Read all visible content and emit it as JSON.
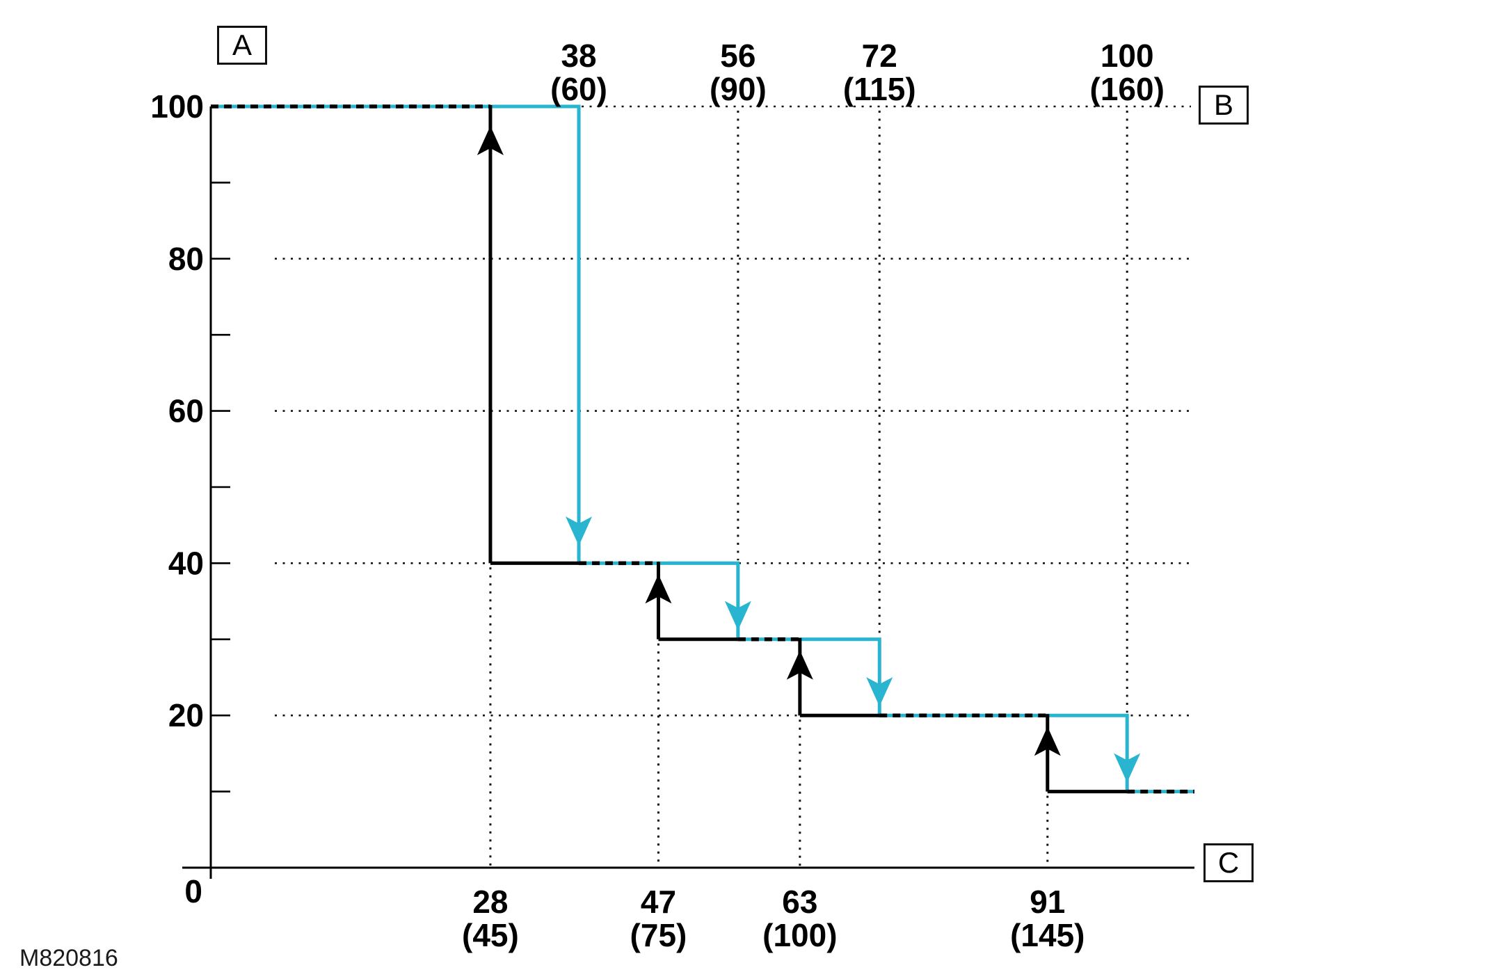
{
  "figure_code": "M820816",
  "labels": {
    "box_a": "A",
    "box_b": "B",
    "box_c": "C"
  },
  "colors": {
    "primary_line": "#000000",
    "secondary_line": "#29B4CF",
    "grid": "#111111",
    "text": "#000000"
  },
  "chart_data": {
    "type": "line",
    "subtype": "step-down",
    "title": "",
    "xlabel": "",
    "ylabel": "",
    "ylim": [
      0,
      100
    ],
    "start_level": 100,
    "final_level": 10,
    "grid": "dotted",
    "y_major_ticks": [
      0,
      20,
      40,
      60,
      80,
      100
    ],
    "y_major_tick_labels": [
      "0",
      "20",
      "40",
      "60",
      "80",
      "100"
    ],
    "y_minor_ticks": [
      10,
      30,
      50,
      70,
      90
    ],
    "series": [
      {
        "name": "primary-black-curve",
        "color": "#000000",
        "axis_for_labels": "bottom",
        "arrow_direction": "up",
        "start_level": 100,
        "drops": [
          {
            "x": 28,
            "x_alt": 45,
            "to_level": 40,
            "label": "28",
            "sublabel": "(45)"
          },
          {
            "x": 47,
            "x_alt": 75,
            "to_level": 30,
            "label": "47",
            "sublabel": "(75)"
          },
          {
            "x": 63,
            "x_alt": 100,
            "to_level": 20,
            "label": "63",
            "sublabel": "(100)"
          },
          {
            "x": 91,
            "x_alt": 145,
            "to_level": 10,
            "label": "91",
            "sublabel": "(145)"
          }
        ]
      },
      {
        "name": "secondary-cyan-curve",
        "color": "#29B4CF",
        "axis_for_labels": "top",
        "arrow_direction": "down",
        "start_level": 100,
        "drops": [
          {
            "x": 38,
            "x_alt": 60,
            "to_level": 40,
            "label": "38",
            "sublabel": "(60)"
          },
          {
            "x": 56,
            "x_alt": 90,
            "to_level": 30,
            "label": "56",
            "sublabel": "(90)"
          },
          {
            "x": 72,
            "x_alt": 115,
            "to_level": 20,
            "label": "72",
            "sublabel": "(115)"
          },
          {
            "x": 100,
            "x_alt": 160,
            "to_level": 10,
            "label": "100",
            "sublabel": "(160)"
          }
        ]
      }
    ],
    "overlap_rendering": "black dashes over cyan where curves coincide"
  }
}
